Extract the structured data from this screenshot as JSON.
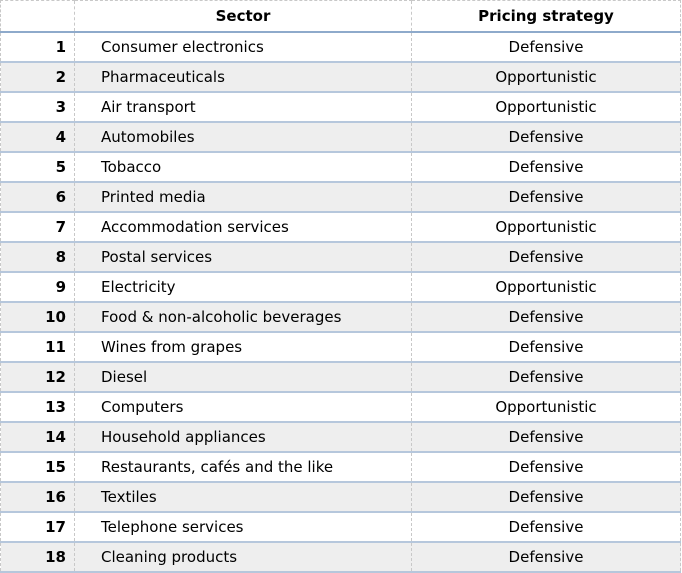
{
  "header": {
    "number": "",
    "sector": "Sector",
    "strategy": "Pricing strategy"
  },
  "rows": [
    {
      "num": "1",
      "sector": "Consumer electronics",
      "strategy": "Defensive"
    },
    {
      "num": "2",
      "sector": "Pharmaceuticals",
      "strategy": "Opportunistic"
    },
    {
      "num": "3",
      "sector": "Air transport",
      "strategy": "Opportunistic"
    },
    {
      "num": "4",
      "sector": "Automobiles",
      "strategy": "Defensive"
    },
    {
      "num": "5",
      "sector": "Tobacco",
      "strategy": "Defensive"
    },
    {
      "num": "6",
      "sector": "Printed media",
      "strategy": "Defensive"
    },
    {
      "num": "7",
      "sector": "Accommodation services",
      "strategy": "Opportunistic"
    },
    {
      "num": "8",
      "sector": "Postal services",
      "strategy": "Defensive"
    },
    {
      "num": "9",
      "sector": "Electricity",
      "strategy": "Opportunistic"
    },
    {
      "num": "10",
      "sector": "Food & non-alcoholic beverages",
      "strategy": "Defensive"
    },
    {
      "num": "11",
      "sector": "Wines from grapes",
      "strategy": "Defensive"
    },
    {
      "num": "12",
      "sector": "Diesel",
      "strategy": "Defensive"
    },
    {
      "num": "13",
      "sector": "Computers",
      "strategy": "Opportunistic"
    },
    {
      "num": "14",
      "sector": "Household appliances",
      "strategy": "Defensive"
    },
    {
      "num": "15",
      "sector": "Restaurants, cafés and the like",
      "strategy": "Defensive"
    },
    {
      "num": "16",
      "sector": "Textiles",
      "strategy": "Defensive"
    },
    {
      "num": "17",
      "sector": "Telephone services",
      "strategy": "Defensive"
    },
    {
      "num": "18",
      "sector": "Cleaning products",
      "strategy": "Defensive"
    }
  ],
  "colors": {
    "header_rule": "#8eaacb",
    "row_rule": "#b6c7dc",
    "alt_row_bg": "#eeeeee",
    "text": "#000000"
  }
}
